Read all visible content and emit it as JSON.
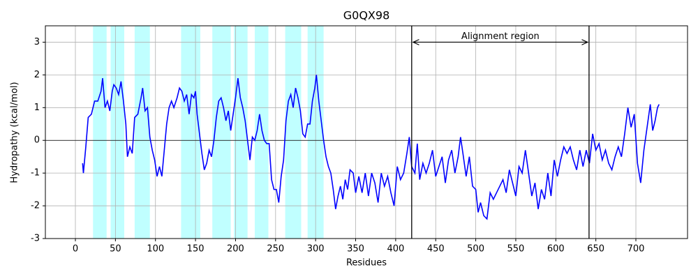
{
  "chart_data": {
    "type": "line",
    "title": "G0QX98",
    "xlabel": "Residues",
    "ylabel": "Hydropathy (kcal/mol)",
    "color": "#0000ff",
    "grid": true,
    "hline": 0,
    "xlim": [
      -37.5,
      764.5
    ],
    "ylim": [
      -3,
      3.5
    ],
    "xticks": [
      0,
      50,
      100,
      150,
      200,
      250,
      300,
      350,
      400,
      450,
      500,
      550,
      600,
      650,
      700
    ],
    "yticks": [
      -3,
      -2,
      -1,
      0,
      1,
      2,
      3
    ],
    "shaded_regions": [
      [
        22,
        39
      ],
      [
        44,
        61
      ],
      [
        74,
        93
      ],
      [
        132,
        156
      ],
      [
        171,
        194
      ],
      [
        198,
        215
      ],
      [
        224,
        241
      ],
      [
        262,
        282
      ],
      [
        290,
        310
      ]
    ],
    "shade_color": "#c0ffff",
    "vlines": [
      420,
      641.5
    ],
    "annotation": {
      "text": "Alignment region",
      "x": [
        420,
        641.5
      ],
      "y": 3
    },
    "x": [
      9,
      10,
      13,
      16,
      20,
      24,
      28,
      32,
      34,
      37,
      40,
      43,
      46,
      48,
      51,
      54,
      57,
      60,
      63,
      65,
      68,
      71,
      74,
      78,
      82,
      84,
      87,
      90,
      93,
      96,
      99,
      102,
      105,
      108,
      111,
      114,
      117,
      120,
      123,
      127,
      130,
      133,
      136,
      139,
      142,
      145,
      148,
      150,
      152,
      155,
      158,
      161,
      164,
      167,
      170,
      173,
      176,
      179,
      182,
      185,
      188,
      191,
      194,
      197,
      200,
      203,
      206,
      209,
      212,
      215,
      218,
      221,
      224,
      227,
      230,
      233,
      236,
      239,
      242,
      245,
      248,
      251,
      254,
      257,
      260,
      263,
      266,
      269,
      272,
      275,
      278,
      281,
      284,
      287,
      290,
      293,
      296,
      299,
      301,
      304,
      307,
      310,
      313,
      316,
      319,
      322,
      325,
      328,
      331,
      334,
      337,
      340,
      343,
      347,
      350,
      354,
      358,
      362,
      366,
      370,
      374,
      378,
      382,
      386,
      390,
      394,
      398,
      402,
      406,
      410,
      414,
      417,
      420,
      424,
      427,
      430,
      434,
      438,
      442,
      446,
      450,
      454,
      458,
      462,
      466,
      470,
      474,
      478,
      481,
      484,
      488,
      492,
      496,
      500,
      503,
      506,
      510,
      514,
      518,
      522,
      526,
      530,
      534,
      538,
      542,
      546,
      550,
      554,
      558,
      562,
      566,
      570,
      574,
      578,
      582,
      586,
      590,
      594,
      598,
      602,
      606,
      610,
      614,
      618,
      622,
      626,
      630,
      634,
      638,
      642,
      646,
      650,
      654,
      658,
      662,
      666,
      670,
      674,
      678,
      682,
      686,
      690,
      694,
      698,
      702,
      706,
      710,
      714,
      718,
      721,
      724,
      727,
      729
    ],
    "values": [
      -0.7,
      -1.0,
      -0.2,
      0.7,
      0.8,
      1.2,
      1.2,
      1.5,
      1.9,
      1.0,
      1.2,
      0.9,
      1.5,
      1.7,
      1.6,
      1.4,
      1.8,
      1.2,
      0.5,
      -0.5,
      -0.2,
      -0.4,
      0.7,
      0.8,
      1.3,
      1.6,
      0.9,
      1.0,
      0.1,
      -0.3,
      -0.6,
      -1.1,
      -0.8,
      -1.1,
      -0.3,
      0.5,
      1.0,
      1.2,
      1.0,
      1.3,
      1.6,
      1.5,
      1.2,
      1.4,
      0.8,
      1.4,
      1.3,
      1.5,
      0.8,
      0.2,
      -0.4,
      -0.9,
      -0.7,
      -0.3,
      -0.5,
      0.0,
      0.7,
      1.2,
      1.3,
      1.0,
      0.6,
      0.9,
      0.3,
      0.8,
      1.3,
      1.9,
      1.3,
      1.0,
      0.6,
      0.0,
      -0.6,
      0.1,
      0.0,
      0.3,
      0.8,
      0.3,
      0.0,
      -0.1,
      -0.1,
      -1.2,
      -1.5,
      -1.5,
      -1.9,
      -1.1,
      -0.6,
      0.6,
      1.2,
      1.4,
      1.0,
      1.6,
      1.3,
      0.9,
      0.2,
      0.1,
      0.5,
      0.5,
      1.2,
      1.6,
      2.0,
      1.2,
      0.6,
      0.0,
      -0.5,
      -0.8,
      -1.0,
      -1.5,
      -2.1,
      -1.7,
      -1.4,
      -1.8,
      -1.2,
      -1.5,
      -0.9,
      -1.0,
      -1.6,
      -1.1,
      -1.6,
      -1.0,
      -1.7,
      -1.0,
      -1.3,
      -1.9,
      -1.0,
      -1.4,
      -1.1,
      -1.6,
      -2.0,
      -0.8,
      -1.2,
      -1.0,
      -0.4,
      0.1,
      -0.8,
      -1.0,
      -0.1,
      -1.2,
      -0.7,
      -1.0,
      -0.7,
      -0.3,
      -1.1,
      -0.8,
      -0.5,
      -1.3,
      -0.6,
      -0.3,
      -1.0,
      -0.5,
      0.1,
      -0.4,
      -1.1,
      -0.5,
      -1.4,
      -1.5,
      -2.2,
      -1.9,
      -2.3,
      -2.4,
      -1.6,
      -1.8,
      -1.6,
      -1.4,
      -1.2,
      -1.6,
      -0.9,
      -1.3,
      -1.7,
      -0.8,
      -1.0,
      -0.3,
      -1.0,
      -1.7,
      -1.3,
      -2.1,
      -1.5,
      -1.8,
      -1.0,
      -1.7,
      -0.6,
      -1.1,
      -0.6,
      -0.2,
      -0.4,
      -0.2,
      -0.6,
      -0.9,
      -0.3,
      -0.8,
      -0.3,
      -0.7,
      0.2,
      -0.3,
      -0.1,
      -0.6,
      -0.3,
      -0.7,
      -0.9,
      -0.5,
      -0.2,
      -0.5,
      0.2,
      1.0,
      0.4,
      0.8,
      -0.7,
      -1.3,
      -0.3,
      0.4,
      1.1,
      0.3,
      0.6,
      1.0,
      1.1
    ]
  }
}
